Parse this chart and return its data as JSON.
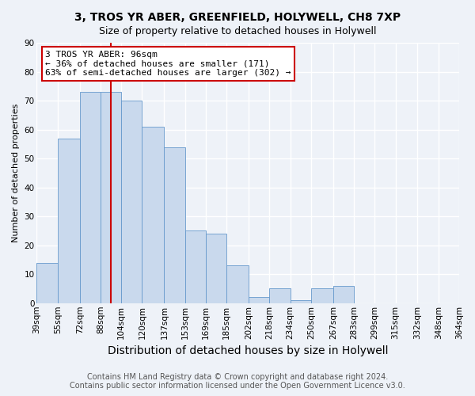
{
  "title": "3, TROS YR ABER, GREENFIELD, HOLYWELL, CH8 7XP",
  "subtitle": "Size of property relative to detached houses in Holywell",
  "xlabel": "Distribution of detached houses by size in Holywell",
  "ylabel": "Number of detached properties",
  "bin_edges": [
    39,
    55,
    72,
    88,
    104,
    120,
    137,
    153,
    169,
    185,
    202,
    218,
    234,
    250,
    267,
    283,
    299,
    315,
    332,
    348,
    364
  ],
  "bin_labels": [
    "39sqm",
    "55sqm",
    "72sqm",
    "88sqm",
    "104sqm",
    "120sqm",
    "137sqm",
    "153sqm",
    "169sqm",
    "185sqm",
    "202sqm",
    "218sqm",
    "234sqm",
    "250sqm",
    "267sqm",
    "283sqm",
    "299sqm",
    "315sqm",
    "332sqm",
    "348sqm",
    "364sqm"
  ],
  "counts": [
    14,
    57,
    73,
    73,
    70,
    61,
    54,
    25,
    24,
    13,
    2,
    5,
    1,
    5,
    6,
    0,
    0,
    0,
    0,
    0
  ],
  "bar_color": "#c9d9ed",
  "bar_edge_color": "#6699cc",
  "vline_color": "#cc0000",
  "vline_x": 96,
  "annotation_line1": "3 TROS YR ABER: 96sqm",
  "annotation_line2": "← 36% of detached houses are smaller (171)",
  "annotation_line3": "63% of semi-detached houses are larger (302) →",
  "annotation_box_color": "#ffffff",
  "annotation_box_edge_color": "#cc0000",
  "ylim": [
    0,
    90
  ],
  "yticks": [
    0,
    10,
    20,
    30,
    40,
    50,
    60,
    70,
    80,
    90
  ],
  "footer_line1": "Contains HM Land Registry data © Crown copyright and database right 2024.",
  "footer_line2": "Contains public sector information licensed under the Open Government Licence v3.0.",
  "background_color": "#eef2f8",
  "grid_color": "#ffffff",
  "title_fontsize": 10,
  "subtitle_fontsize": 9,
  "xlabel_fontsize": 10,
  "ylabel_fontsize": 8,
  "tick_fontsize": 7.5,
  "annotation_fontsize": 8,
  "footer_fontsize": 7
}
